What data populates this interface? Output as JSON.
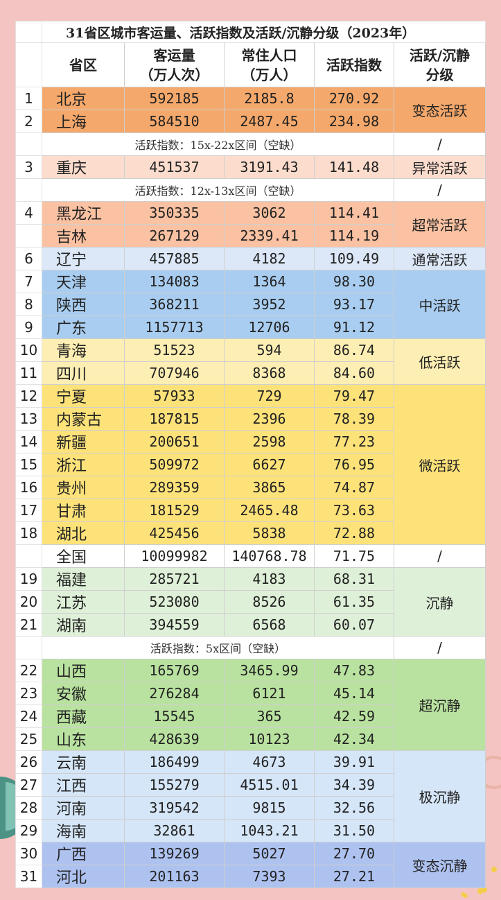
{
  "title": "31省区城市客运量、活跃指数及活跃/沉静分级（2023年）",
  "headers": {
    "province": "省区",
    "passenger_line1": "客运量",
    "passenger_line2": "（万人次）",
    "population_line1": "常住人口",
    "population_line2": "（万人）",
    "activity_index": "活跃指数",
    "grade_line1": "活跃/沉静",
    "grade_line2": "分级"
  },
  "gaps": {
    "g1": "活跃指数：15x-22x区间（空缺）",
    "g2": "活跃指数：12x-13x区间（空缺）",
    "g3": "活跃指数：5x区间（空缺）",
    "slash": "/"
  },
  "grades": {
    "biantai_huoyue": "变态活跃",
    "yichang_huoyue": "异常活跃",
    "chaochang_huoyue": "超常活跃",
    "tongchang_huoyue": "通常活跃",
    "zhong_huoyue": "中活跃",
    "di_huoyue": "低活跃",
    "wei_huoyue": "微活跃",
    "chenjing": "沉静",
    "chao_chenjing": "超沉静",
    "ji_chenjing": "极沉静",
    "biantai_chenjing": "变态沉静"
  },
  "rows": [
    {
      "idx": "1",
      "name": "北京",
      "passengers": "592185",
      "population": "2185.8",
      "index": "270.92"
    },
    {
      "idx": "2",
      "name": "上海",
      "passengers": "584510",
      "population": "2487.45",
      "index": "234.98"
    },
    {
      "idx": "3",
      "name": "重庆",
      "passengers": "451537",
      "population": "3191.43",
      "index": "141.48"
    },
    {
      "idx": "4",
      "name": "黑龙江",
      "passengers": "350335",
      "population": "3062",
      "index": "114.41"
    },
    {
      "idx": "",
      "name": "吉林",
      "passengers": "267129",
      "population": "2339.41",
      "index": "114.19"
    },
    {
      "idx": "6",
      "name": "辽宁",
      "passengers": "457885",
      "population": "4182",
      "index": "109.49"
    },
    {
      "idx": "7",
      "name": "天津",
      "passengers": "134083",
      "population": "1364",
      "index": "98.30"
    },
    {
      "idx": "8",
      "name": "陕西",
      "passengers": "368211",
      "population": "3952",
      "index": "93.17"
    },
    {
      "idx": "9",
      "name": "广东",
      "passengers": "1157713",
      "population": "12706",
      "index": "91.12"
    },
    {
      "idx": "10",
      "name": "青海",
      "passengers": "51523",
      "population": "594",
      "index": "86.74"
    },
    {
      "idx": "11",
      "name": "四川",
      "passengers": "707946",
      "population": "8368",
      "index": "84.60"
    },
    {
      "idx": "12",
      "name": "宁夏",
      "passengers": "57933",
      "population": "729",
      "index": "79.47"
    },
    {
      "idx": "13",
      "name": "内蒙古",
      "passengers": "187815",
      "population": "2396",
      "index": "78.39"
    },
    {
      "idx": "14",
      "name": "新疆",
      "passengers": "200651",
      "population": "2598",
      "index": "77.23"
    },
    {
      "idx": "15",
      "name": "浙江",
      "passengers": "509972",
      "population": "6627",
      "index": "76.95"
    },
    {
      "idx": "16",
      "name": "贵州",
      "passengers": "289359",
      "population": "3865",
      "index": "74.87"
    },
    {
      "idx": "17",
      "name": "甘肃",
      "passengers": "181529",
      "population": "2465.48",
      "index": "73.63"
    },
    {
      "idx": "18",
      "name": "湖北",
      "passengers": "425456",
      "population": "5838",
      "index": "72.88"
    },
    {
      "idx": "",
      "name": "全国",
      "passengers": "10099982",
      "population": "140768.78",
      "index": "71.75"
    },
    {
      "idx": "19",
      "name": "福建",
      "passengers": "285721",
      "population": "4183",
      "index": "68.31"
    },
    {
      "idx": "20",
      "name": "江苏",
      "passengers": "523080",
      "population": "8526",
      "index": "61.35"
    },
    {
      "idx": "21",
      "name": "湖南",
      "passengers": "394559",
      "population": "6568",
      "index": "60.07"
    },
    {
      "idx": "22",
      "name": "山西",
      "passengers": "165769",
      "population": "3465.99",
      "index": "47.83"
    },
    {
      "idx": "23",
      "name": "安徽",
      "passengers": "276284",
      "population": "6121",
      "index": "45.14"
    },
    {
      "idx": "24",
      "name": "西藏",
      "passengers": "15545",
      "population": "365",
      "index": "42.59"
    },
    {
      "idx": "25",
      "name": "山东",
      "passengers": "428639",
      "population": "10123",
      "index": "42.34"
    },
    {
      "idx": "26",
      "name": "云南",
      "passengers": "186499",
      "population": "4673",
      "index": "39.91"
    },
    {
      "idx": "27",
      "name": "江西",
      "passengers": "155279",
      "population": "4515.01",
      "index": "34.39"
    },
    {
      "idx": "28",
      "name": "河南",
      "passengers": "319542",
      "population": "9815",
      "index": "32.56"
    },
    {
      "idx": "29",
      "name": "海南",
      "passengers": "32861",
      "population": "1043.21",
      "index": "31.50"
    },
    {
      "idx": "30",
      "name": "广西",
      "passengers": "139269",
      "population": "5027",
      "index": "27.70"
    },
    {
      "idx": "31",
      "name": "河北",
      "passengers": "201163",
      "population": "7393",
      "index": "27.21"
    }
  ],
  "colors": {
    "page_bg": "#f3c4c2",
    "biantai_huoyue": "#f4a86b",
    "yichang_huoyue": "#fbdccd",
    "chaochang_huoyue": "#fac2a2",
    "tongchang_huoyue": "#dce8f8",
    "zhong_huoyue": "#a9cdf0",
    "di_huoyue": "#fdeeb3",
    "wei_huoyue": "#fde27a",
    "chenjing": "#dff0d8",
    "chao_chenjing": "#b9e2a0",
    "ji_chenjing": "#d5e6f8",
    "biantai_chenjing": "#aec2f0"
  }
}
